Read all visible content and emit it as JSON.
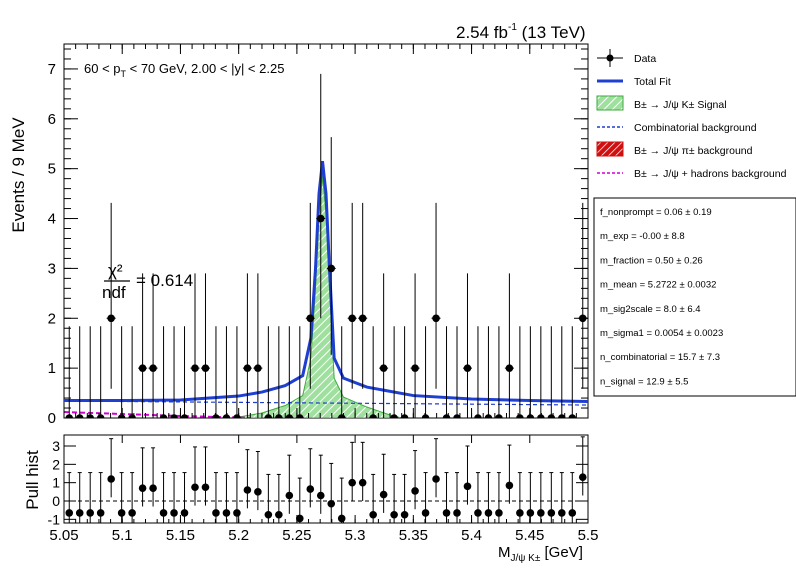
{
  "header": {
    "lumi": "2.54 fb",
    "lumi_exp": "-1",
    "energy": " (13 TeV)"
  },
  "cut_label": {
    "part1": "60 < p",
    "sub": "T",
    "part2": " < 70 GeV, 2.00 < |y| < 2.25"
  },
  "chi2": {
    "num": "χ²",
    "den": "ndf",
    "value": "= 0.614"
  },
  "legend": [
    {
      "label": "Data",
      "style": "marker"
    },
    {
      "label": "Total Fit",
      "style": "line",
      "color": "#1f3fd0"
    },
    {
      "label": "B± → J/ψ K± Signal",
      "style": "hatch-green",
      "color": "#3faa3f"
    },
    {
      "label": "Combinatorial background",
      "style": "dash",
      "color": "#1f3fd0"
    },
    {
      "label": "B± → J/ψ π± background",
      "style": "hatch-red",
      "color": "#d01010"
    },
    {
      "label": "B± → J/ψ + hadrons background",
      "style": "dash",
      "color": "#d000d0"
    }
  ],
  "params": [
    "f_nonprompt =  0.06 ± 0.19",
    "m_exp = -0.00 ± 8.8",
    "m_fraction =  0.50 ± 0.26",
    "m_mean =  5.2722 ± 0.0032",
    "m_sig2scale =  8.0 ± 6.4",
    "m_sigma1 =  0.0054 ± 0.0023",
    "n_combinatorial =  15.7 ± 7.3",
    "n_signal =  12.9 ± 5.5"
  ],
  "chart_data": {
    "type": "scatter",
    "title": "2.54 fb-1 (13 TeV)",
    "xlabel": "M_{J/ψ K±} [GeV]",
    "ylabel": "Events / 9 MeV",
    "xlim": [
      5.05,
      5.5
    ],
    "ylim": [
      0,
      7.5
    ],
    "xticks": [
      "5.05",
      "5.1",
      "5.15",
      "5.2",
      "5.25",
      "5.3",
      "5.35",
      "5.4",
      "5.45",
      "5.5"
    ],
    "yticks": [
      "0",
      "1",
      "2",
      "3",
      "4",
      "5",
      "6",
      "7"
    ],
    "data_points": {
      "x": [
        5.0545,
        5.0635,
        5.0725,
        5.0815,
        5.0905,
        5.0995,
        5.1085,
        5.1175,
        5.1265,
        5.1355,
        5.1445,
        5.1535,
        5.1625,
        5.1715,
        5.1805,
        5.1895,
        5.1985,
        5.2075,
        5.2165,
        5.2255,
        5.2345,
        5.2435,
        5.2525,
        5.2615,
        5.2705,
        5.2795,
        5.2885,
        5.2975,
        5.3065,
        5.3155,
        5.3245,
        5.3335,
        5.3425,
        5.3515,
        5.3605,
        5.3695,
        5.3785,
        5.3875,
        5.3965,
        5.4055,
        5.4145,
        5.4235,
        5.4325,
        5.4415,
        5.4505,
        5.4595,
        5.4685,
        5.4775,
        5.4865,
        5.4955
      ],
      "y": [
        0,
        0,
        0,
        0,
        2,
        0,
        0,
        1,
        1,
        0,
        0,
        0,
        1,
        1,
        0,
        0,
        0,
        1,
        1,
        0,
        0,
        0,
        0,
        2,
        4,
        3,
        0,
        2,
        2,
        0,
        1,
        0,
        0,
        1,
        0,
        2,
        0,
        0,
        1,
        0,
        0,
        0,
        1,
        0,
        0,
        0,
        0,
        0,
        0,
        2
      ]
    },
    "total_fit": {
      "x": [
        5.05,
        5.1,
        5.15,
        5.2,
        5.22,
        5.24,
        5.255,
        5.262,
        5.266,
        5.269,
        5.272,
        5.275,
        5.278,
        5.282,
        5.29,
        5.31,
        5.35,
        5.4,
        5.45,
        5.5
      ],
      "y": [
        0.35,
        0.35,
        0.36,
        0.44,
        0.52,
        0.65,
        0.85,
        1.6,
        3.0,
        4.5,
        5.15,
        4.5,
        3.0,
        1.2,
        0.8,
        0.62,
        0.45,
        0.38,
        0.35,
        0.33
      ]
    },
    "signal": {
      "x": [
        5.2,
        5.22,
        5.24,
        5.255,
        5.262,
        5.266,
        5.269,
        5.272,
        5.275,
        5.278,
        5.282,
        5.29,
        5.31,
        5.33,
        5.34
      ],
      "y": [
        0.02,
        0.1,
        0.25,
        0.45,
        1.2,
        2.6,
        4.1,
        4.85,
        4.1,
        2.6,
        0.8,
        0.42,
        0.22,
        0.06,
        0.0
      ]
    },
    "combinatorial": {
      "x": [
        5.05,
        5.5
      ],
      "y": [
        0.34,
        0.26
      ]
    },
    "hadrons": {
      "x": [
        5.05,
        5.1,
        5.15,
        5.2,
        5.21
      ],
      "y": [
        0.12,
        0.08,
        0.04,
        0.01,
        0.0
      ]
    },
    "pull": {
      "ylabel": "Pull hist",
      "ylim": [
        -1.2,
        3.6
      ],
      "yticks": [
        "-1",
        "0",
        "1",
        "2",
        "3"
      ],
      "values": [
        -0.65,
        -0.65,
        -0.65,
        -0.65,
        1.2,
        -0.65,
        -0.65,
        0.7,
        0.7,
        -0.65,
        -0.65,
        -0.65,
        0.75,
        0.75,
        -0.65,
        -0.65,
        -0.65,
        0.6,
        0.5,
        -0.75,
        -0.75,
        0.3,
        -0.95,
        0.65,
        0.3,
        -0.15,
        -0.95,
        1.0,
        1.0,
        -0.75,
        0.35,
        -0.75,
        -0.75,
        0.55,
        -0.65,
        1.2,
        -0.65,
        -0.65,
        0.8,
        -0.65,
        -0.65,
        -0.65,
        0.85,
        -0.65,
        -0.65,
        -0.65,
        -0.65,
        -0.65,
        -0.65,
        1.3
      ]
    }
  }
}
